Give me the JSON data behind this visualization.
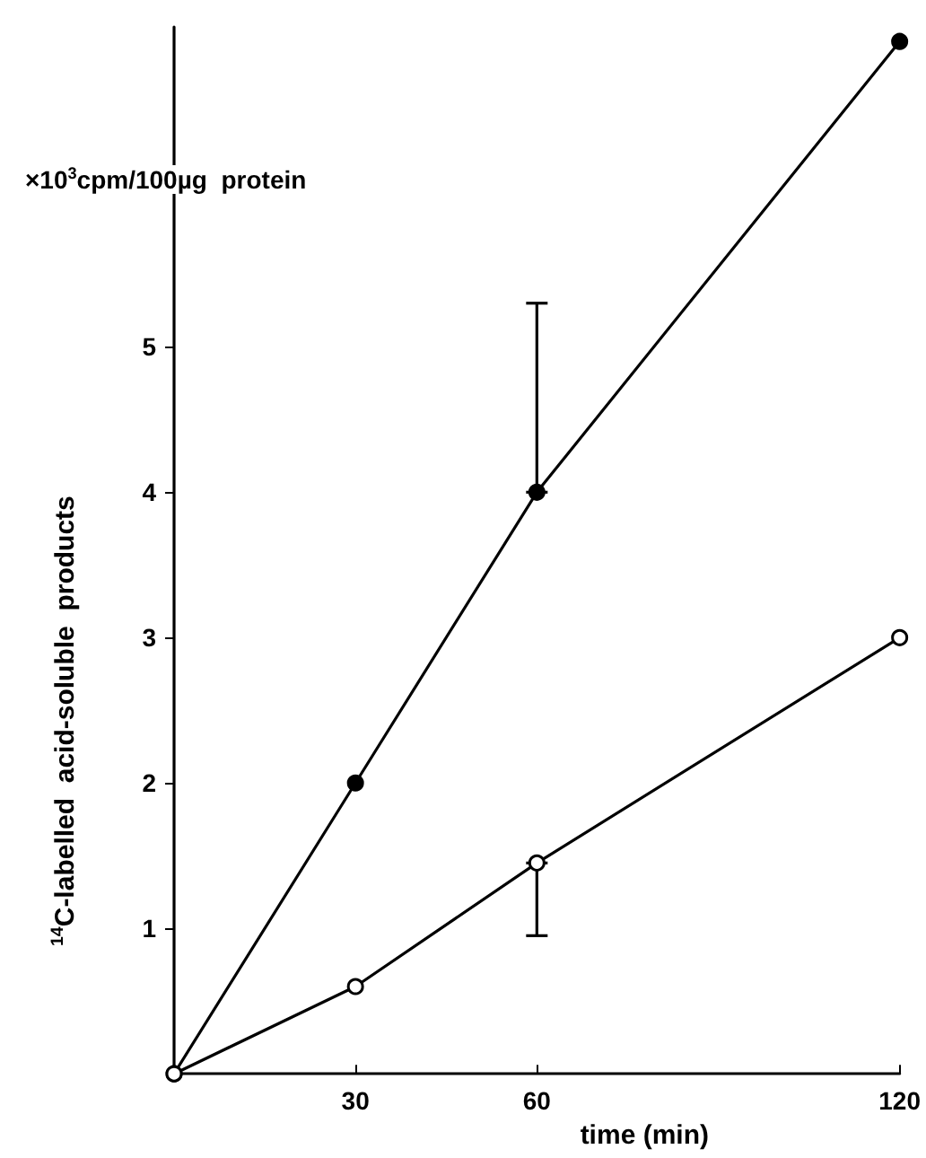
{
  "chart_data": {
    "type": "line",
    "xlabel": "time (min)",
    "ylabel": "$^{14}$C-labelled  acid-soluble  products",
    "annotations": [
      "×10$^{3}$cpm/100µg  protein"
    ],
    "x": [
      0,
      30,
      60,
      120
    ],
    "series": [
      {
        "color": "#000000",
        "values": [
          0,
          2.0,
          4.0,
          7.1
        ],
        "errors": [
          null,
          null,
          [
            4.0,
            5.3
          ],
          null
        ]
      },
      {
        "color": "#000000",
        "values": [
          0,
          0.6,
          1.45,
          3.0
        ],
        "errors": [
          null,
          null,
          [
            0.95,
            1.45
          ],
          null
        ]
      }
    ],
    "xlim": [
      0,
      120
    ],
    "xticks": [
      30,
      60,
      120
    ],
    "ylim": [
      0,
      7.2
    ],
    "yticks": [
      1,
      2,
      3,
      4,
      5
    ],
    "marker": "circle",
    "line_style": "solid",
    "grid": false
  }
}
